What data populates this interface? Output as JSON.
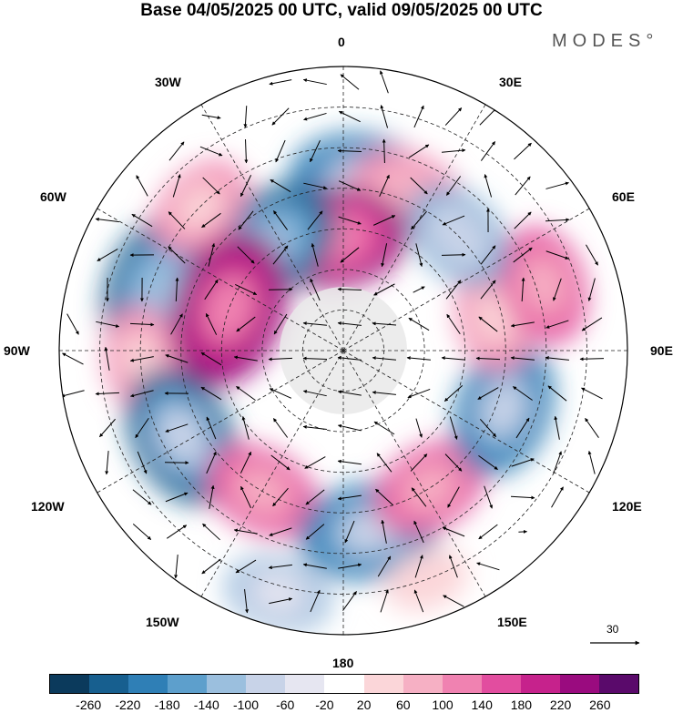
{
  "title": "Base 04/05/2025 00 UTC, valid 09/05/2025 00 UTC",
  "brand": "MODES°",
  "longitude_labels": {
    "n0": "0",
    "n30e": "30E",
    "n60e": "60E",
    "n90e": "90E",
    "n120e": "120E",
    "n150e": "150E",
    "n180": "180",
    "n150w": "150W",
    "n120w": "120W",
    "n90w": "90W",
    "n60w": "60W",
    "n30w": "30W"
  },
  "wind_scale": {
    "value": "30"
  },
  "colorbar": {
    "colors": [
      "#0b3a5c",
      "#175f8f",
      "#2f7fb6",
      "#5d9fcc",
      "#9bbfde",
      "#c8d3e8",
      "#e6e6f1",
      "#ffffff",
      "#fbd6d9",
      "#f6b0c4",
      "#f082b1",
      "#e24d9f",
      "#c6228c",
      "#9a0b7f",
      "#5a0a6b"
    ],
    "ticks": [
      "-260",
      "-220",
      "-180",
      "-140",
      "-100",
      "-60",
      "-20",
      "20",
      "60",
      "100",
      "140",
      "180",
      "220",
      "260"
    ]
  },
  "anomaly_centers": [
    {
      "lon": 5,
      "lat": -48,
      "value": -200
    },
    {
      "lon": 22,
      "lat": -48,
      "value": 140
    },
    {
      "lon": -5,
      "lat": -62,
      "value": 230
    },
    {
      "lon": -35,
      "lat": -58,
      "value": -230
    },
    {
      "lon": -72,
      "lat": -42,
      "value": -240
    },
    {
      "lon": -70,
      "lat": -60,
      "value": 260
    },
    {
      "lon": -45,
      "lat": -40,
      "value": 120
    },
    {
      "lon": -92,
      "lat": -40,
      "value": 110
    },
    {
      "lon": -118,
      "lat": -45,
      "value": -220
    },
    {
      "lon": -150,
      "lat": -50,
      "value": 150
    },
    {
      "lon": 172,
      "lat": -45,
      "value": -210
    },
    {
      "lon": 148,
      "lat": -50,
      "value": 150
    },
    {
      "lon": 110,
      "lat": -48,
      "value": -200
    },
    {
      "lon": 78,
      "lat": -52,
      "value": 120
    },
    {
      "lon": 72,
      "lat": -38,
      "value": 150
    },
    {
      "lon": 45,
      "lat": -50,
      "value": -140
    },
    {
      "lon": -165,
      "lat": -28,
      "value": -120
    },
    {
      "lon": 160,
      "lat": -30,
      "value": 60
    }
  ]
}
